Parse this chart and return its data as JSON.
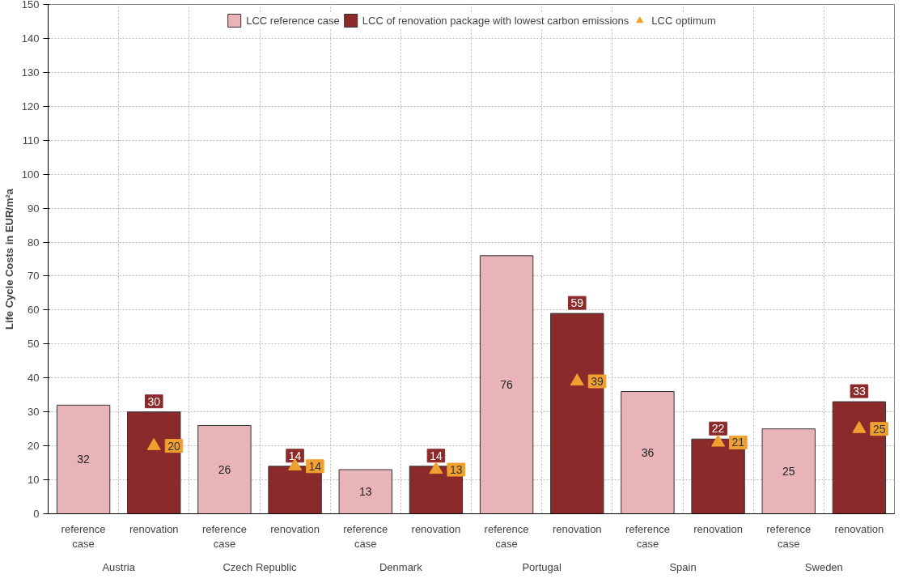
{
  "chart_data": {
    "type": "bar",
    "ylabel": "Life Cycle Costs in EUR/m²a",
    "categories": [
      "reference case",
      "renovation",
      "reference case",
      "renovation",
      "reference case",
      "renovation",
      "reference case",
      "renovation",
      "reference case",
      "renovation",
      "reference case",
      "renovation"
    ],
    "annotations": [
      "Austria",
      "Czech Republic",
      "Denmark",
      "Portugal",
      "Spain",
      "Sweden"
    ],
    "series": [
      {
        "name": "LCC reference case",
        "color": "#e8b4b8",
        "values": [
          32,
          null,
          26,
          null,
          13,
          null,
          76,
          null,
          36,
          null,
          25,
          null
        ]
      },
      {
        "name": "LCC of renovation package with lowest carbon emissions",
        "color": "#8b2a2a",
        "values": [
          null,
          30,
          null,
          14,
          null,
          14,
          null,
          59,
          null,
          22,
          null,
          33
        ]
      },
      {
        "name": "LCC optimum",
        "type": "scatter",
        "marker": "triangle",
        "color": "#f0a030",
        "values": [
          null,
          20,
          null,
          14,
          null,
          13,
          null,
          39,
          null,
          21,
          null,
          25
        ]
      }
    ],
    "ylim": [
      0,
      150
    ],
    "yticks": [
      0,
      10,
      20,
      30,
      40,
      50,
      60,
      70,
      80,
      90,
      100,
      110,
      120,
      130,
      140,
      150
    ],
    "grid": true,
    "legend": "top",
    "data_labels": true
  }
}
